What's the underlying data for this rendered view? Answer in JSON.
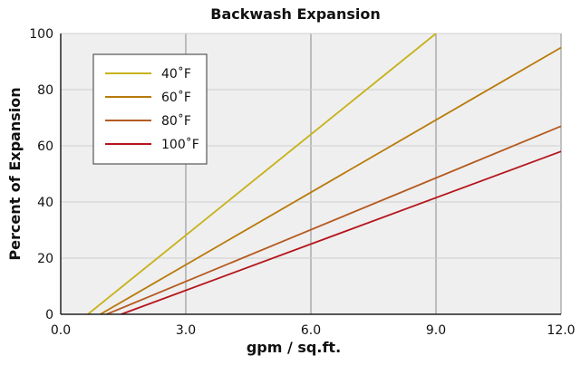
{
  "chart_data": {
    "type": "line",
    "title": "Backwash Expansion",
    "xlabel": "gpm / sq.ft.",
    "ylabel": "Percent of Expansion",
    "xlim": [
      0,
      12
    ],
    "ylim": [
      0,
      100
    ],
    "xticks": [
      0,
      3,
      6,
      9,
      12
    ],
    "xtick_labels": [
      "0.0",
      "3.0",
      "6.0",
      "9.0",
      "12.0"
    ],
    "yticks": [
      0,
      20,
      40,
      60,
      80,
      100
    ],
    "ytick_labels": [
      "0",
      "20",
      "40",
      "60",
      "80",
      "100"
    ],
    "grid": true,
    "legend_position": "top-left",
    "series": [
      {
        "name": "40˚F",
        "color": "#C6B21A",
        "points": [
          [
            0.65,
            0
          ],
          [
            9.0,
            100
          ]
        ]
      },
      {
        "name": "60˚F",
        "color": "#B97A0A",
        "points": [
          [
            0.95,
            0
          ],
          [
            12.0,
            95
          ]
        ]
      },
      {
        "name": "80˚F",
        "color": "#B55A1F",
        "points": [
          [
            1.1,
            0
          ],
          [
            12.0,
            67
          ]
        ]
      },
      {
        "name": "100˚F",
        "color": "#B5151B",
        "points": [
          [
            1.45,
            0
          ],
          [
            12.0,
            58
          ]
        ]
      }
    ]
  }
}
